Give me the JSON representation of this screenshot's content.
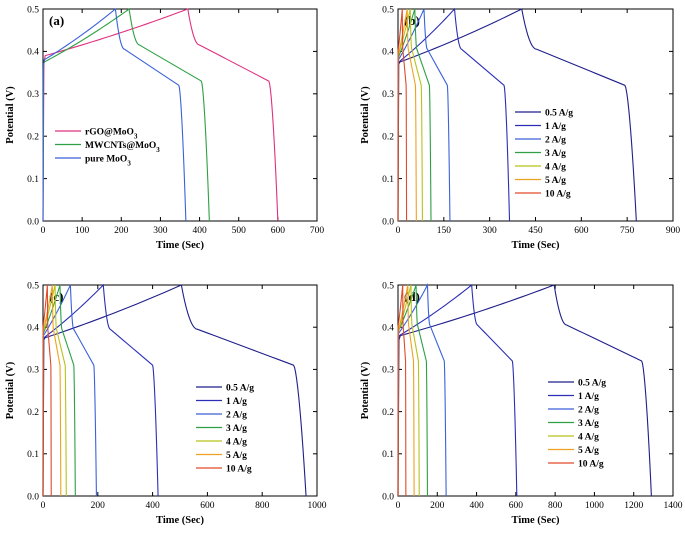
{
  "chart_data": [
    {
      "type": "line",
      "panel": "(a)",
      "xlabel": "Time (Sec)",
      "ylabel": "Potential (V)",
      "xlim": [
        0,
        700
      ],
      "ylim": [
        0,
        0.5
      ],
      "xticks": [
        0,
        100,
        200,
        300,
        400,
        500,
        600,
        700
      ],
      "xtick_labels": [
        "0",
        "100",
        "200",
        "300",
        "400",
        "500",
        "600",
        "700"
      ],
      "yticks": [
        0.0,
        0.1,
        0.2,
        0.3,
        0.4,
        0.5
      ],
      "ytick_labels": [
        "0.0",
        "0.1",
        "0.2",
        "0.3",
        "0.4",
        "0.5"
      ],
      "legend_position": "center-left",
      "series": [
        {
          "name": "rGO@MoO3",
          "label_main": "rGO@MoO",
          "label_sub": "3",
          "color": "#e0307f",
          "x_peak": 370,
          "x_end": 600,
          "v0": 0.37,
          "v_start": 0.39,
          "v_kink": 0.33
        },
        {
          "name": "MWCNTs@MoO3",
          "label_main": "MWCNTs@MoO",
          "label_sub": "3",
          "color": "#2ea043",
          "x_peak": 220,
          "x_end": 425,
          "v0": 0.37,
          "v_start": 0.375,
          "v_kink": 0.33
        },
        {
          "name": "pure MoO3",
          "label_main": "pure MoO",
          "label_sub": "3",
          "color": "#3a62d9",
          "x_peak": 185,
          "x_end": 365,
          "v0": 0.36,
          "v_start": 0.38,
          "v_kink": 0.32
        }
      ]
    },
    {
      "type": "line",
      "panel": "(b)",
      "xlabel": "Time (Sec)",
      "ylabel": "Potential (V)",
      "xlim": [
        0,
        900
      ],
      "ylim": [
        0,
        0.5
      ],
      "xticks": [
        0,
        150,
        300,
        450,
        600,
        750,
        900
      ],
      "xtick_labels": [
        "0",
        "150",
        "300",
        "450",
        "600",
        "750",
        "900"
      ],
      "yticks": [
        0.0,
        0.1,
        0.2,
        0.3,
        0.4,
        0.5
      ],
      "ytick_labels": [
        "0.0",
        "0.1",
        "0.2",
        "0.3",
        "0.4",
        "0.5"
      ],
      "legend_position": "center-right",
      "series": [
        {
          "name": "0.5 A/g",
          "color": "#1f1f8a",
          "x_peak": 405,
          "x_end": 780,
          "v0": 0.37,
          "v_start": 0.375,
          "v_kink": 0.32
        },
        {
          "name": "1 A/g",
          "color": "#2b2fb5",
          "x_peak": 185,
          "x_end": 365,
          "v0": 0.37,
          "v_start": 0.375,
          "v_kink": 0.32
        },
        {
          "name": "2 A/g",
          "color": "#3a62d9",
          "x_peak": 85,
          "x_end": 170,
          "v0": 0.37,
          "v_start": 0.38,
          "v_kink": 0.32
        },
        {
          "name": "3 A/g",
          "color": "#2ea043",
          "x_peak": 55,
          "x_end": 108,
          "v0": 0.37,
          "v_start": 0.385,
          "v_kink": 0.32
        },
        {
          "name": "4 A/g",
          "color": "#b8c21a",
          "x_peak": 40,
          "x_end": 80,
          "v0": 0.37,
          "v_start": 0.39,
          "v_kink": 0.32
        },
        {
          "name": "5 A/g",
          "color": "#f0a020",
          "x_peak": 30,
          "x_end": 60,
          "v0": 0.37,
          "v_start": 0.39,
          "v_kink": 0.32
        },
        {
          "name": "10 A/g",
          "color": "#e04a2a",
          "x_peak": 14,
          "x_end": 28,
          "v0": 0.37,
          "v_start": 0.4,
          "v_kink": 0.32
        }
      ]
    },
    {
      "type": "line",
      "panel": "(c)",
      "xlabel": "Time (Sec)",
      "ylabel": "Potential (V)",
      "xlim": [
        0,
        1000
      ],
      "ylim": [
        0,
        0.5
      ],
      "xticks": [
        0,
        200,
        400,
        600,
        800,
        1000
      ],
      "xtick_labels": [
        "0",
        "200",
        "400",
        "600",
        "800",
        "1000"
      ],
      "yticks": [
        0.0,
        0.1,
        0.2,
        0.3,
        0.4,
        0.5
      ],
      "ytick_labels": [
        "0.0",
        "0.1",
        "0.2",
        "0.3",
        "0.4",
        "0.5"
      ],
      "legend_position": "center-right",
      "series": [
        {
          "name": "0.5 A/g",
          "color": "#1f1f8a",
          "x_peak": 505,
          "x_end": 960,
          "v0": 0.37,
          "v_start": 0.375,
          "v_kink": 0.31
        },
        {
          "name": "1 A/g",
          "color": "#2b2fb5",
          "x_peak": 220,
          "x_end": 420,
          "v0": 0.37,
          "v_start": 0.375,
          "v_kink": 0.31
        },
        {
          "name": "2 A/g",
          "color": "#3a62d9",
          "x_peak": 100,
          "x_end": 195,
          "v0": 0.37,
          "v_start": 0.38,
          "v_kink": 0.31
        },
        {
          "name": "3 A/g",
          "color": "#2ea043",
          "x_peak": 62,
          "x_end": 118,
          "v0": 0.37,
          "v_start": 0.385,
          "v_kink": 0.31
        },
        {
          "name": "4 A/g",
          "color": "#b8c21a",
          "x_peak": 44,
          "x_end": 85,
          "v0": 0.37,
          "v_start": 0.39,
          "v_kink": 0.31
        },
        {
          "name": "5 A/g",
          "color": "#f0a020",
          "x_peak": 34,
          "x_end": 65,
          "v0": 0.37,
          "v_start": 0.39,
          "v_kink": 0.31
        },
        {
          "name": "10 A/g",
          "color": "#e04a2a",
          "x_peak": 16,
          "x_end": 30,
          "v0": 0.37,
          "v_start": 0.4,
          "v_kink": 0.31
        }
      ]
    },
    {
      "type": "line",
      "panel": "(d)",
      "xlabel": "Time (Sec)",
      "ylabel": "Potential (V)",
      "xlim": [
        0,
        1400
      ],
      "ylim": [
        0,
        0.5
      ],
      "xticks": [
        0,
        200,
        400,
        600,
        800,
        1000,
        1200,
        1400
      ],
      "xtick_labels": [
        "0",
        "200",
        "400",
        "600",
        "800",
        "1000",
        "1200",
        "1400"
      ],
      "yticks": [
        0.0,
        0.1,
        0.2,
        0.3,
        0.4,
        0.5
      ],
      "ytick_labels": [
        "0.0",
        "0.1",
        "0.2",
        "0.3",
        "0.4",
        "0.5"
      ],
      "legend_position": "center-right",
      "series": [
        {
          "name": "0.5 A/g",
          "color": "#1f1f8a",
          "x_peak": 795,
          "x_end": 1290,
          "v0": 0.37,
          "v_start": 0.38,
          "v_kink": 0.32
        },
        {
          "name": "1 A/g",
          "color": "#2b2fb5",
          "x_peak": 375,
          "x_end": 605,
          "v0": 0.37,
          "v_start": 0.38,
          "v_kink": 0.32
        },
        {
          "name": "2 A/g",
          "color": "#3a62d9",
          "x_peak": 150,
          "x_end": 245,
          "v0": 0.37,
          "v_start": 0.385,
          "v_kink": 0.32
        },
        {
          "name": "3 A/g",
          "color": "#2ea043",
          "x_peak": 92,
          "x_end": 150,
          "v0": 0.37,
          "v_start": 0.39,
          "v_kink": 0.32
        },
        {
          "name": "4 A/g",
          "color": "#b8c21a",
          "x_peak": 66,
          "x_end": 108,
          "v0": 0.37,
          "v_start": 0.39,
          "v_kink": 0.32
        },
        {
          "name": "5 A/g",
          "color": "#f0a020",
          "x_peak": 50,
          "x_end": 82,
          "v0": 0.37,
          "v_start": 0.39,
          "v_kink": 0.32
        },
        {
          "name": "10 A/g",
          "color": "#e04a2a",
          "x_peak": 24,
          "x_end": 40,
          "v0": 0.37,
          "v_start": 0.4,
          "v_kink": 0.32
        }
      ]
    }
  ]
}
